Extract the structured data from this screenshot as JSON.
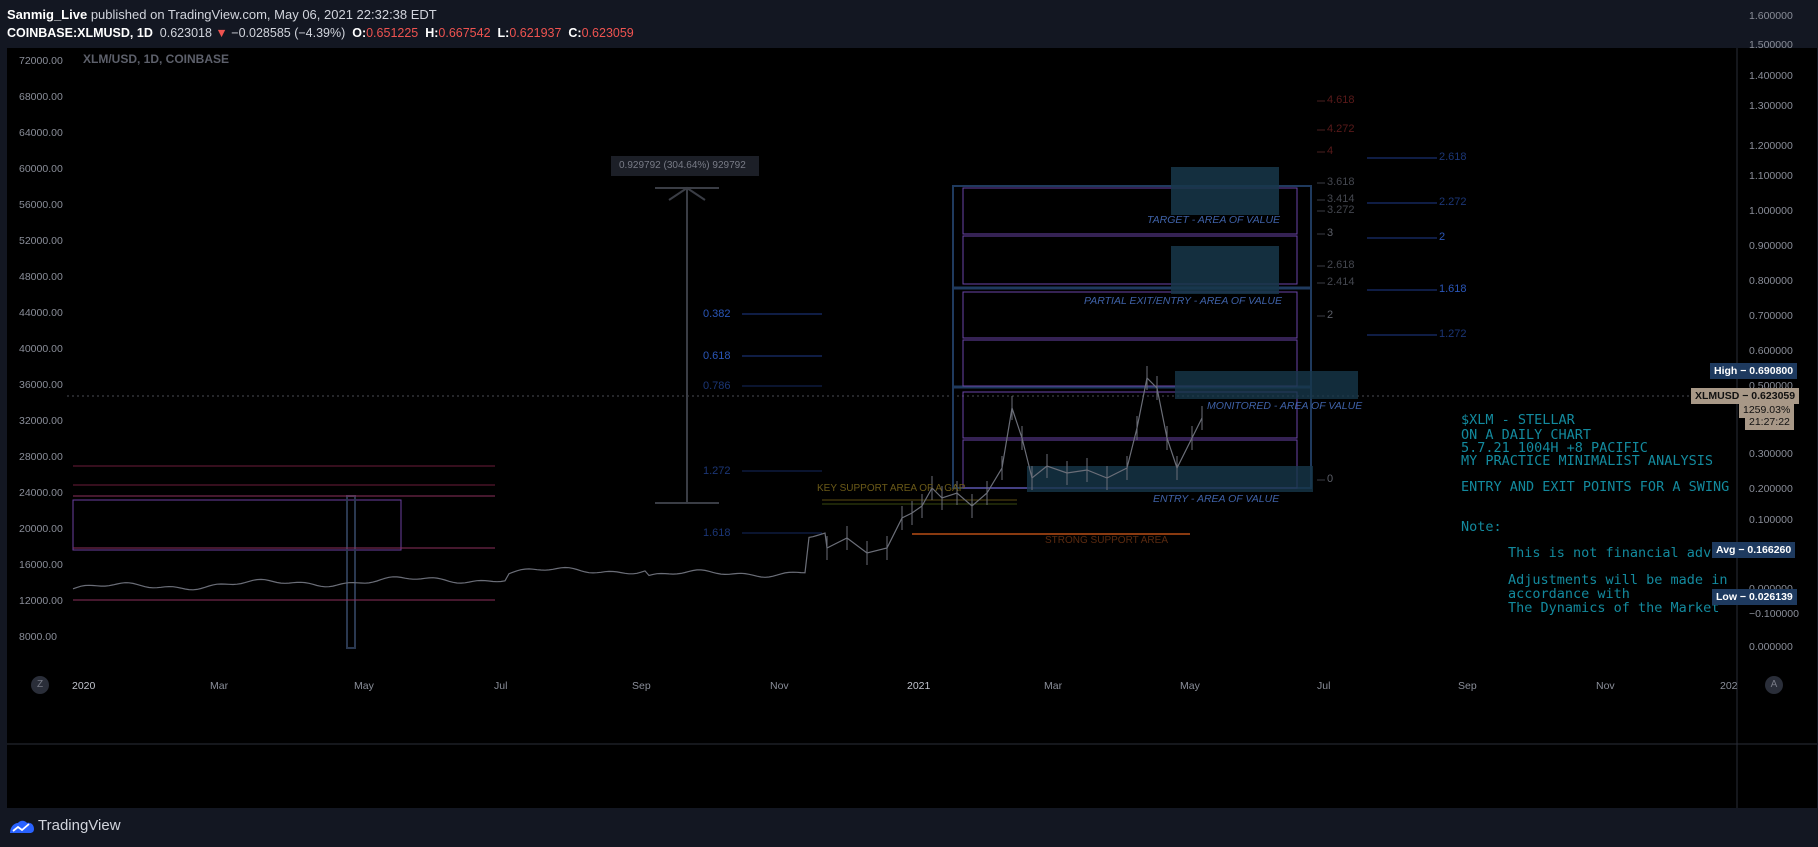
{
  "header": {
    "publisher": "Sanmig_Live",
    "published_text": "published on TradingView.com, May 06, 2021 22:32:38 EDT",
    "symbol": "COINBASE:XLMUSD, 1D",
    "price": "0.623018",
    "change": "−0.028585 (−4.39%)",
    "o_label": "O:",
    "o_val": "0.651225",
    "h_label": "H:",
    "h_val": "0.667542",
    "l_label": "L:",
    "l_val": "0.621937",
    "c_label": "C:",
    "c_val": "0.623059",
    "down_arrow": "▼"
  },
  "chart": {
    "title": "XLM/USD, 1D, COINBASE",
    "left_axis": [
      "72000.00",
      "68000.00",
      "64000.00",
      "60000.00",
      "56000.00",
      "52000.00",
      "48000.00",
      "44000.00",
      "40000.00",
      "36000.00",
      "32000.00",
      "28000.00",
      "24000.00",
      "20000.00",
      "16000.00",
      "12000.00",
      "8000.00"
    ],
    "right_axis": [
      "1.600000",
      "1.500000",
      "1.400000",
      "1.300000",
      "1.200000",
      "1.100000",
      "1.000000",
      "0.900000",
      "0.800000",
      "0.700000",
      "0.600000",
      "0.500000",
      "0.400000",
      "0.300000",
      "0.200000",
      "0.100000",
      "0.000000",
      "−0.100000",
      "0.000000"
    ],
    "time_axis": [
      "2020",
      "Mar",
      "May",
      "Jul",
      "Sep",
      "Nov",
      "2021",
      "Mar",
      "May",
      "Jul",
      "Sep",
      "Nov",
      "202"
    ],
    "measure_label": "0.929792 (304.64%) 929792",
    "fib_left": [
      "0.382",
      "0.618",
      "0.786",
      "1.272",
      "1.618"
    ],
    "fib_mid": [
      "4.618",
      "4.272",
      "4",
      "3.618",
      "3.414",
      "3.272",
      "3",
      "2.618",
      "2.414",
      "2",
      "0"
    ],
    "fib_right": [
      "2.618",
      "2.272",
      "2",
      "1.618",
      "1.272"
    ],
    "zones": {
      "target": "TARGET - AREA OF VALUE",
      "partial": "PARTIAL EXIT/ENTRY - AREA OF VALUE",
      "monitored": "MONITORED - AREA OF VALUE",
      "entry": "ENTRY - AREA OF VALUE",
      "key_support": "KEY SUPPORT AREA OF A GAP",
      "strong_support": "STRONG SUPPORT AREA"
    },
    "notes": {
      "l1": "$XLM - STELLAR",
      "l2": "ON A DAILY CHART",
      "l3": "5.7.21  1004H +8 PACIFIC",
      "l4": "MY PRACTICE MINIMALIST ANALYSIS",
      "l5": "ENTRY AND EXIT POINTS FOR A SWING",
      "l6": "Note:",
      "l7": "This is not financial advice.",
      "l8": "Adjustments will be made in",
      "l9": "accordance with",
      "l10": "The Dynamics of the Market"
    },
    "badges": {
      "high": "High  −  0.690800",
      "symbol": "XLMUSD  −  0.623059",
      "pct": "1259.03%",
      "time": "21:27:22",
      "avg": "Avg  −  0.166260",
      "low": "Low  −  0.026139"
    },
    "btn_z": "Z",
    "btn_a": "A"
  },
  "footer": {
    "brand": "TradingView"
  },
  "colors": {
    "bg": "#000000",
    "fib_blue": "#2962ff",
    "zone_purple": "#7e57c2",
    "support_orange": "#ff6d00",
    "note_teal": "#138a9e"
  }
}
